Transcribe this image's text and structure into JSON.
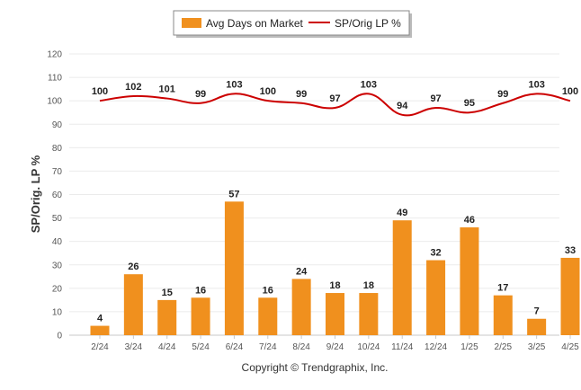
{
  "chart_data": {
    "type": "bar",
    "categories": [
      "2/24",
      "3/24",
      "4/24",
      "5/24",
      "6/24",
      "7/24",
      "8/24",
      "9/24",
      "10/24",
      "11/24",
      "12/24",
      "1/25",
      "2/25",
      "3/25",
      "4/25"
    ],
    "series": [
      {
        "name": "Avg Days on Market",
        "type": "bar",
        "color": "#f0901e",
        "values": [
          4,
          26,
          15,
          16,
          57,
          16,
          24,
          18,
          18,
          49,
          32,
          46,
          17,
          7,
          33
        ]
      },
      {
        "name": "SP/Orig LP %",
        "type": "line",
        "color": "#cc0000",
        "values": [
          100,
          102,
          101,
          99,
          103,
          100,
          99,
          97,
          103,
          94,
          97,
          95,
          99,
          103,
          100
        ]
      }
    ],
    "ylabel": "SP/Orig. LP %",
    "xlabel": "",
    "ylim": [
      0,
      120
    ],
    "yticks": [
      0,
      10,
      20,
      30,
      40,
      50,
      60,
      70,
      80,
      90,
      100,
      110,
      120
    ],
    "grid": true,
    "legend_position": "top-center"
  },
  "footer": {
    "copyright": "Copyright © Trendgraphix, Inc."
  }
}
